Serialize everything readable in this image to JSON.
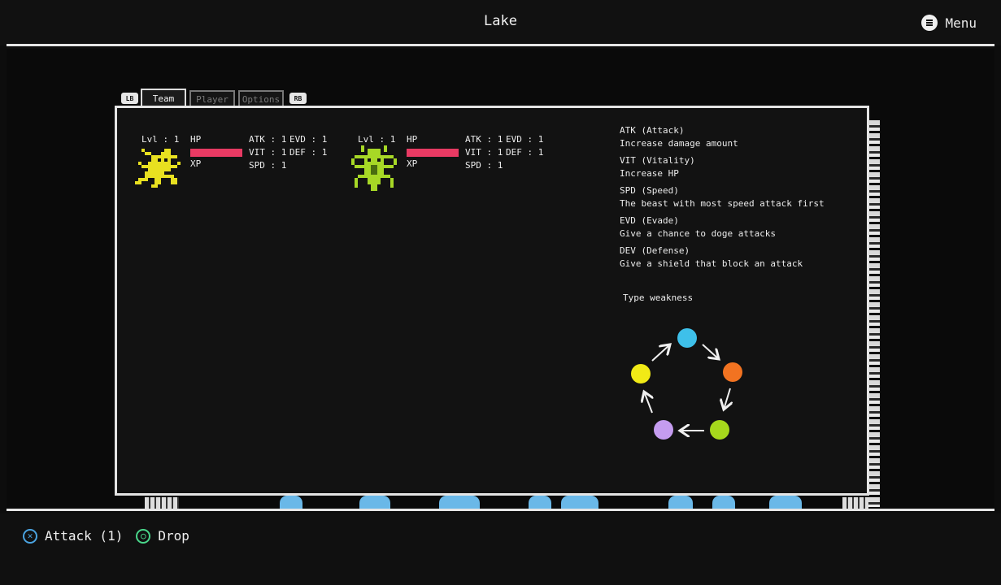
{
  "header": {
    "title": "Lake",
    "menu_label": "Menu"
  },
  "tabs": {
    "left_bumper": "LB",
    "right_bumper": "RB",
    "items": [
      {
        "label": "Team",
        "active": true
      },
      {
        "label": "Player",
        "active": false
      },
      {
        "label": "Options",
        "active": false
      }
    ]
  },
  "team": [
    {
      "level": "Lvl : 1",
      "hp_label": "HP",
      "xp_label": "XP",
      "hp_fraction": 1.0,
      "atk": "ATK : 1",
      "vit": "VIT : 1",
      "spd": "SPD : 1",
      "evd": "EVD : 1",
      "def": "DEF : 1",
      "sprite_color": "#e8e020",
      "sprite_icon": "spider-creature-icon"
    },
    {
      "level": "Lvl : 1",
      "hp_label": "HP",
      "xp_label": "XP",
      "hp_fraction": 1.0,
      "atk": "ATK : 1",
      "vit": "VIT : 1",
      "spd": "SPD : 1",
      "evd": "EVD : 1",
      "def": "DEF : 1",
      "sprite_color": "#a7d826",
      "sprite_icon": "bug-creature-icon"
    }
  ],
  "stat_info": [
    {
      "name": "ATK (Attack)",
      "desc": "Increase damage amount"
    },
    {
      "name": "VIT (Vitality)",
      "desc": "Increase HP"
    },
    {
      "name": "SPD  (Speed)",
      "desc": "The beast with most speed attack first"
    },
    {
      "name": "EVD  (Evade)",
      "desc": "Give a chance to doge attacks"
    },
    {
      "name": "DEV  (Defense)",
      "desc": "Give a shield that block an attack"
    }
  ],
  "type_weakness": {
    "label": "Type weakness",
    "colors": [
      "#3ec0ea",
      "#f27321",
      "#a6d81c",
      "#c59cf0",
      "#f1ea16"
    ]
  },
  "hp_bar_color": "#e83a63",
  "bottom_prompts": [
    {
      "label": "Attack (1)",
      "icon": "cross-button-icon",
      "color": "#4aa3e0"
    },
    {
      "label": "Drop",
      "icon": "circle-button-icon",
      "color": "#49d68a"
    }
  ]
}
